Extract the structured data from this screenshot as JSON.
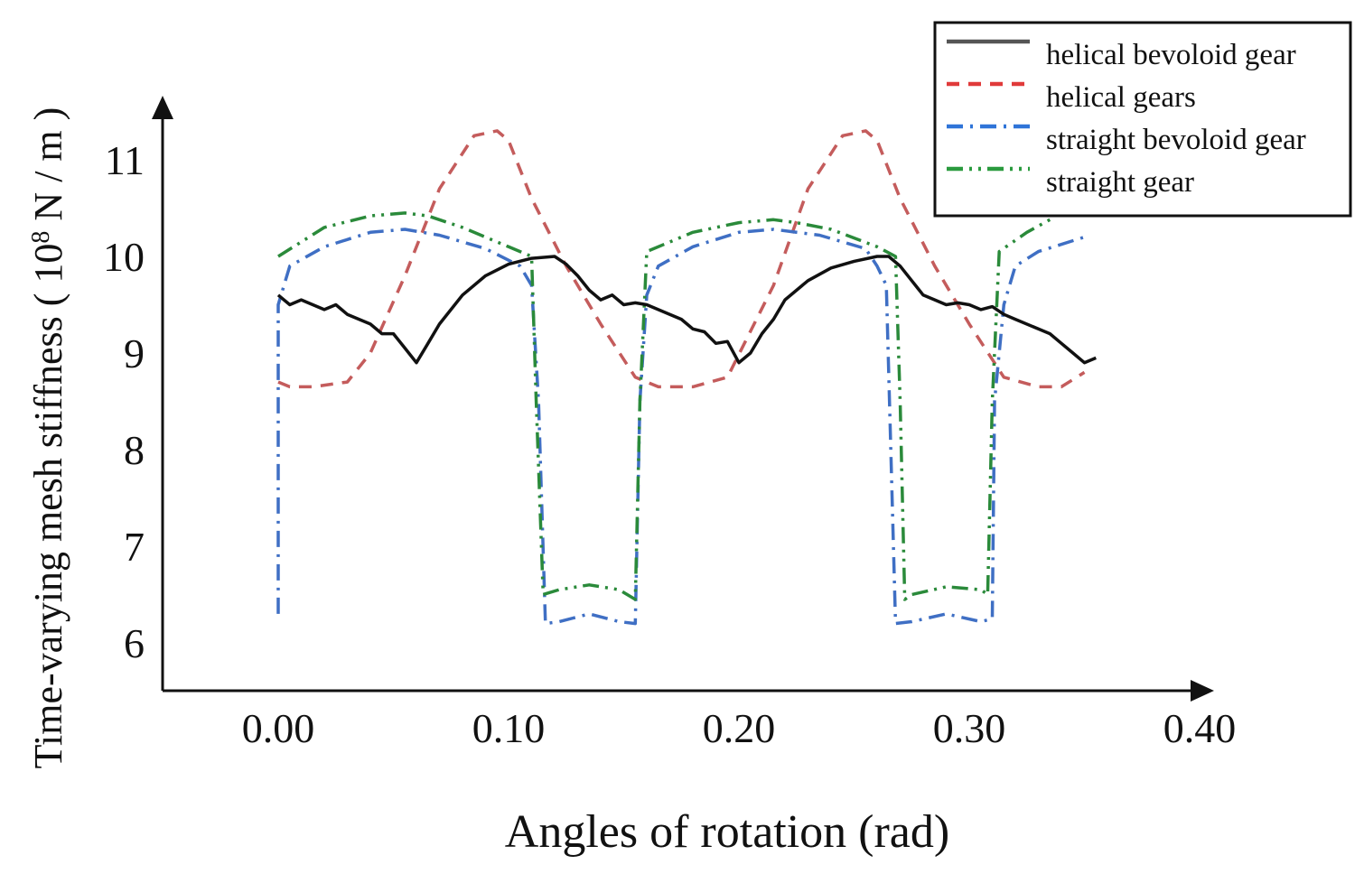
{
  "chart_data": {
    "type": "line",
    "title": "",
    "xlabel": "Angles of rotation (rad)",
    "ylabel_main": "Time-varying mesh stiffness ( 10",
    "ylabel_sup": "8",
    "ylabel_tail": " N / m )",
    "xlim": [
      -0.05,
      0.405
    ],
    "ylim": [
      5.5,
      11.8
    ],
    "x_ticks": [
      {
        "value": 0.0,
        "label": "0.00"
      },
      {
        "value": 0.1,
        "label": "0.10"
      },
      {
        "value": 0.2,
        "label": "0.20"
      },
      {
        "value": 0.3,
        "label": "0.30"
      },
      {
        "value": 0.4,
        "label": "0.40"
      }
    ],
    "y_ticks": [
      {
        "value": 6,
        "label": "6"
      },
      {
        "value": 7,
        "label": "7"
      },
      {
        "value": 8,
        "label": "8"
      },
      {
        "value": 9,
        "label": "9"
      },
      {
        "value": 10,
        "label": "10"
      },
      {
        "value": 11,
        "label": "11"
      }
    ],
    "legend_position": "top-right",
    "series": [
      {
        "name": "helical bevoloid gear",
        "color": "#111111",
        "dash": "solid",
        "x": [
          0.0,
          0.005,
          0.01,
          0.02,
          0.025,
          0.03,
          0.04,
          0.045,
          0.05,
          0.055,
          0.06,
          0.065,
          0.07,
          0.08,
          0.09,
          0.1,
          0.11,
          0.12,
          0.125,
          0.13,
          0.135,
          0.14,
          0.145,
          0.15,
          0.155,
          0.16,
          0.17,
          0.175,
          0.18,
          0.185,
          0.19,
          0.195,
          0.2,
          0.205,
          0.21,
          0.215,
          0.22,
          0.23,
          0.24,
          0.25,
          0.26,
          0.265,
          0.27,
          0.275,
          0.28,
          0.285,
          0.29,
          0.295,
          0.3,
          0.305,
          0.31,
          0.315,
          0.32,
          0.33,
          0.335,
          0.34,
          0.345,
          0.35,
          0.355
        ],
        "y": [
          9.6,
          9.5,
          9.55,
          9.45,
          9.5,
          9.4,
          9.3,
          9.2,
          9.2,
          9.05,
          8.9,
          9.1,
          9.3,
          9.6,
          9.8,
          9.92,
          9.98,
          10.0,
          9.92,
          9.8,
          9.65,
          9.55,
          9.6,
          9.5,
          9.52,
          9.5,
          9.4,
          9.35,
          9.25,
          9.22,
          9.1,
          9.12,
          8.9,
          9.0,
          9.2,
          9.35,
          9.55,
          9.75,
          9.88,
          9.95,
          10.0,
          10.0,
          9.9,
          9.75,
          9.6,
          9.55,
          9.5,
          9.52,
          9.5,
          9.45,
          9.48,
          9.4,
          9.35,
          9.25,
          9.2,
          9.1,
          9.0,
          8.9,
          8.95
        ]
      },
      {
        "name": "helical gears",
        "color": "#c45c5c",
        "dash": "short-dash",
        "x": [
          0.0,
          0.005,
          0.015,
          0.03,
          0.04,
          0.055,
          0.07,
          0.085,
          0.095,
          0.1,
          0.11,
          0.125,
          0.14,
          0.155,
          0.165,
          0.18,
          0.195,
          0.215,
          0.23,
          0.245,
          0.255,
          0.26,
          0.27,
          0.285,
          0.3,
          0.315,
          0.33,
          0.34,
          0.35
        ],
        "y": [
          8.7,
          8.65,
          8.65,
          8.7,
          9.0,
          9.8,
          10.7,
          11.25,
          11.3,
          11.2,
          10.6,
          9.9,
          9.3,
          8.75,
          8.65,
          8.65,
          8.75,
          9.7,
          10.7,
          11.25,
          11.3,
          11.2,
          10.6,
          9.9,
          9.3,
          8.75,
          8.65,
          8.65,
          8.8
        ]
      },
      {
        "name": "straight bevoloid gear",
        "color": "#3f6fc4",
        "dash": "dash-dot",
        "x": [
          0.0,
          0.0,
          0.005,
          0.02,
          0.04,
          0.055,
          0.07,
          0.09,
          0.105,
          0.11,
          0.113,
          0.116,
          0.122,
          0.135,
          0.148,
          0.155,
          0.157,
          0.16,
          0.165,
          0.18,
          0.2,
          0.215,
          0.235,
          0.255,
          0.26,
          0.264,
          0.268,
          0.275,
          0.29,
          0.305,
          0.31,
          0.311,
          0.315,
          0.32,
          0.33,
          0.35
        ],
        "y": [
          6.3,
          9.5,
          9.9,
          10.1,
          10.25,
          10.28,
          10.22,
          10.08,
          9.9,
          9.7,
          8.5,
          6.2,
          6.22,
          6.3,
          6.22,
          6.2,
          8.5,
          9.6,
          9.9,
          10.1,
          10.25,
          10.28,
          10.22,
          10.08,
          9.9,
          9.7,
          6.2,
          6.22,
          6.3,
          6.22,
          6.25,
          8.5,
          9.5,
          9.9,
          10.05,
          10.2
        ]
      },
      {
        "name": "straight gear",
        "color": "#2a8a3a",
        "dash": "dash-dot-dot",
        "x": [
          0.0,
          0.02,
          0.04,
          0.055,
          0.065,
          0.08,
          0.1,
          0.11,
          0.112,
          0.115,
          0.122,
          0.135,
          0.148,
          0.155,
          0.157,
          0.16,
          0.18,
          0.2,
          0.215,
          0.225,
          0.24,
          0.26,
          0.268,
          0.27,
          0.272,
          0.275,
          0.29,
          0.305,
          0.308,
          0.31,
          0.313,
          0.325,
          0.335
        ],
        "y": [
          10.0,
          10.3,
          10.42,
          10.45,
          10.42,
          10.3,
          10.1,
          10.0,
          8.5,
          6.5,
          6.55,
          6.6,
          6.55,
          6.45,
          8.5,
          10.05,
          10.25,
          10.35,
          10.38,
          10.35,
          10.28,
          10.1,
          10.0,
          8.5,
          6.45,
          6.5,
          6.58,
          6.55,
          6.5,
          8.5,
          10.05,
          10.25,
          10.38
        ]
      }
    ]
  }
}
